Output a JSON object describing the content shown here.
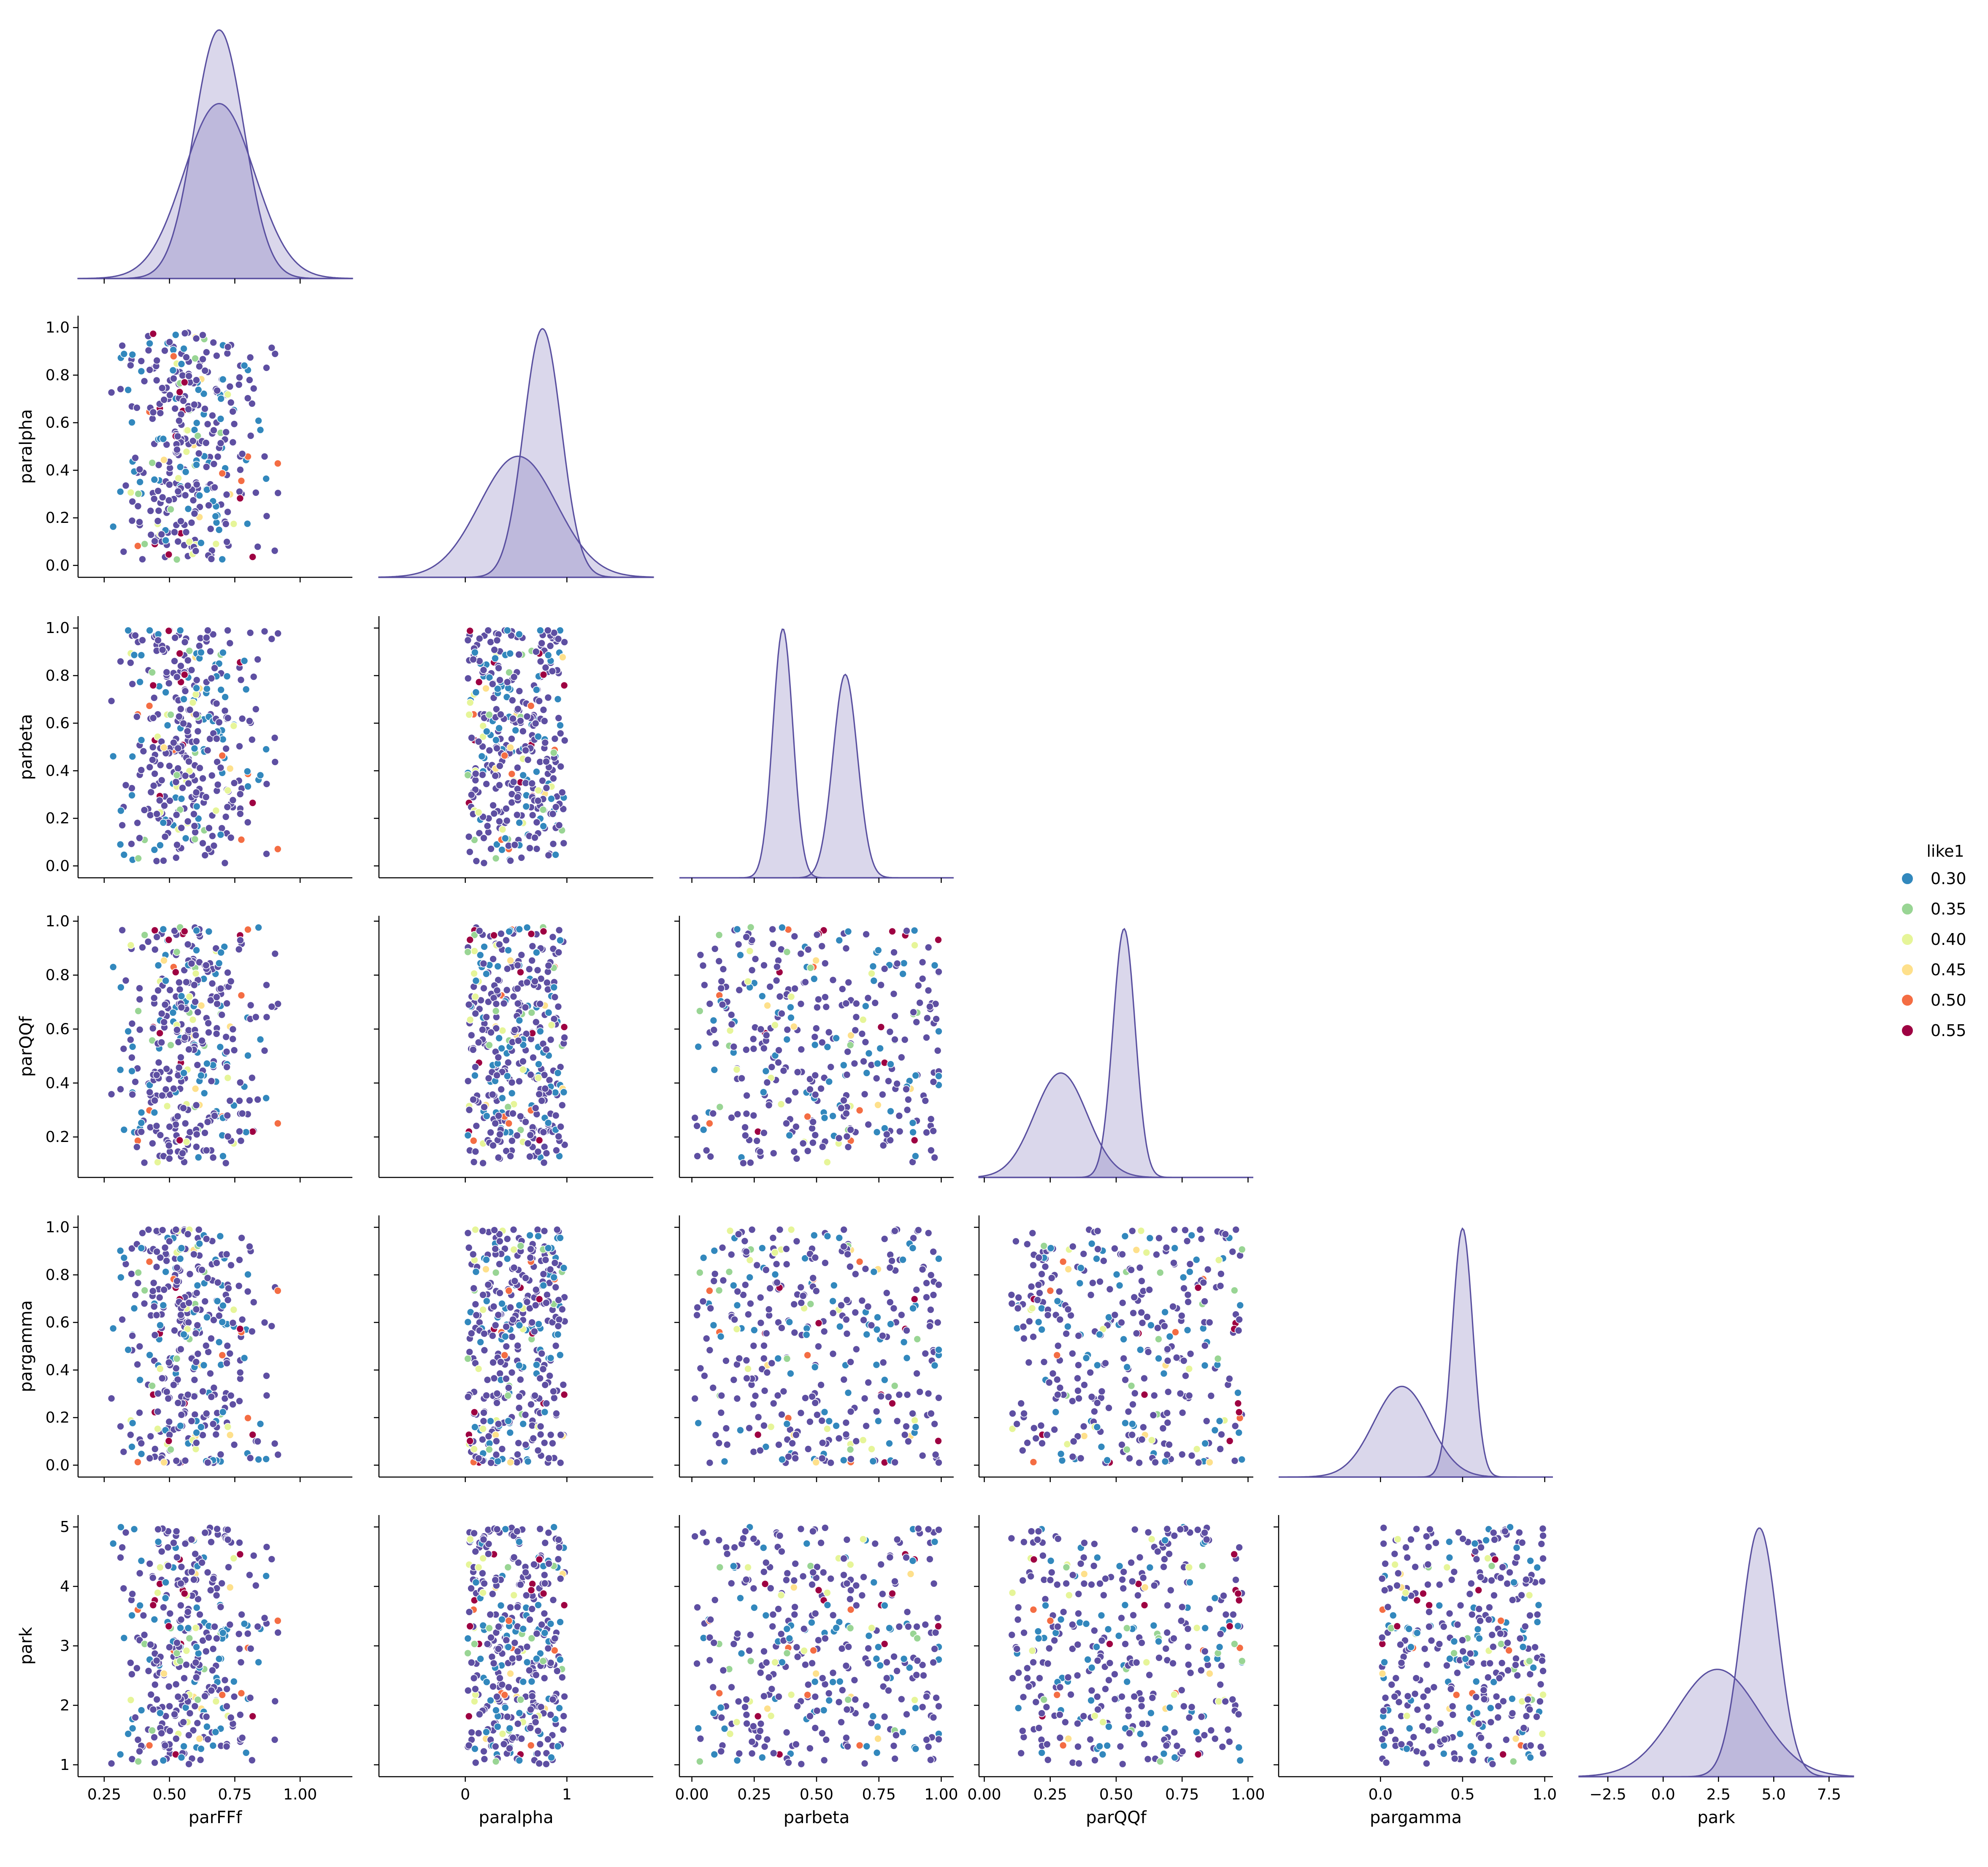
{
  "chart_data": {
    "type": "scatter",
    "variables": [
      "parFFf",
      "paralpha",
      "parbeta",
      "parQQf",
      "pargamma",
      "park"
    ],
    "diagonal_type": "kde",
    "corner": true,
    "grid": false,
    "axis_ranges": {
      "parFFf": [
        0.15,
        1.2
      ],
      "paralpha": [
        -0.85,
        1.85
      ],
      "parbeta": [
        -0.05,
        1.05
      ],
      "parQQf": [
        -0.02,
        1.02
      ],
      "pargamma": [
        -0.62,
        1.05
      ],
      "park": [
        -3.8,
        8.6
      ]
    },
    "y_ranges": {
      "paralpha": [
        -0.05,
        1.05
      ],
      "parbeta": [
        -0.05,
        1.05
      ],
      "parQQf": [
        0.05,
        1.02
      ],
      "pargamma": [
        -0.05,
        1.05
      ],
      "park": [
        0.8,
        5.2
      ]
    },
    "ticks": {
      "parFFf": [
        "0.25",
        "0.50",
        "0.75",
        "1.00"
      ],
      "paralpha": [
        "0",
        "1"
      ],
      "parbeta": [
        "0.00",
        "0.25",
        "0.50",
        "0.75",
        "1.00"
      ],
      "parQQf": [
        "0.00",
        "0.25",
        "0.50",
        "0.75",
        "1.00"
      ],
      "pargamma": [
        "0.0",
        "0.5",
        "1.0"
      ],
      "park": [
        "−2.5",
        "0.0",
        "2.5",
        "5.0",
        "7.5"
      ]
    },
    "y_ticks": {
      "paralpha": [
        "0.0",
        "0.2",
        "0.4",
        "0.6",
        "0.8",
        "1.0"
      ],
      "parbeta": [
        "0.0",
        "0.2",
        "0.4",
        "0.6",
        "0.8",
        "1.0"
      ],
      "parQQf": [
        "0.2",
        "0.4",
        "0.6",
        "0.8",
        "1.0"
      ],
      "pargamma": [
        "0.0",
        "0.2",
        "0.4",
        "0.6",
        "0.8",
        "1.0"
      ],
      "park": [
        "1",
        "2",
        "3",
        "4",
        "5"
      ]
    },
    "kde_components": {
      "parFFf": [
        {
          "mean": 0.69,
          "sd": 0.135,
          "w": 1.0
        },
        {
          "mean": 0.69,
          "sd": 0.095,
          "w": 1.0
        }
      ],
      "paralpha": [
        {
          "mean": 0.52,
          "sd": 0.38,
          "w": 1.0
        },
        {
          "mean": 0.76,
          "sd": 0.185,
          "w": 1.0
        }
      ],
      "parbeta": [
        {
          "mean": 0.365,
          "sd": 0.04,
          "w": 1.0
        },
        {
          "mean": 0.615,
          "sd": 0.049,
          "w": 1.0
        }
      ],
      "parQQf": [
        {
          "mean": 0.29,
          "sd": 0.1,
          "w": 1.0
        },
        {
          "mean": 0.53,
          "sd": 0.042,
          "w": 1.0
        }
      ],
      "pargamma": [
        {
          "mean": 0.13,
          "sd": 0.17,
          "w": 1.0
        },
        {
          "mean": 0.5,
          "sd": 0.062,
          "w": 1.0
        }
      ],
      "park": [
        {
          "mean": 2.45,
          "sd": 1.9,
          "w": 1.0
        },
        {
          "mean": 4.35,
          "sd": 0.82,
          "w": 1.0
        }
      ]
    },
    "point_count": 360,
    "legend": {
      "title": "like1",
      "position": "center-right",
      "entries": [
        {
          "label": "0.30",
          "color": "#3288bd"
        },
        {
          "label": "0.35",
          "color": "#99d594"
        },
        {
          "label": "0.40",
          "color": "#e6f598"
        },
        {
          "label": "0.45",
          "color": "#fee08b"
        },
        {
          "label": "0.50",
          "color": "#f46d43"
        },
        {
          "label": "0.55",
          "color": "#9e0142"
        }
      ]
    },
    "colors": {
      "base_point": "#5e4fa2",
      "kde_line": "#5a50a0",
      "kde_fill": "#6a5fb0",
      "point_edge": "#ffffff"
    }
  }
}
